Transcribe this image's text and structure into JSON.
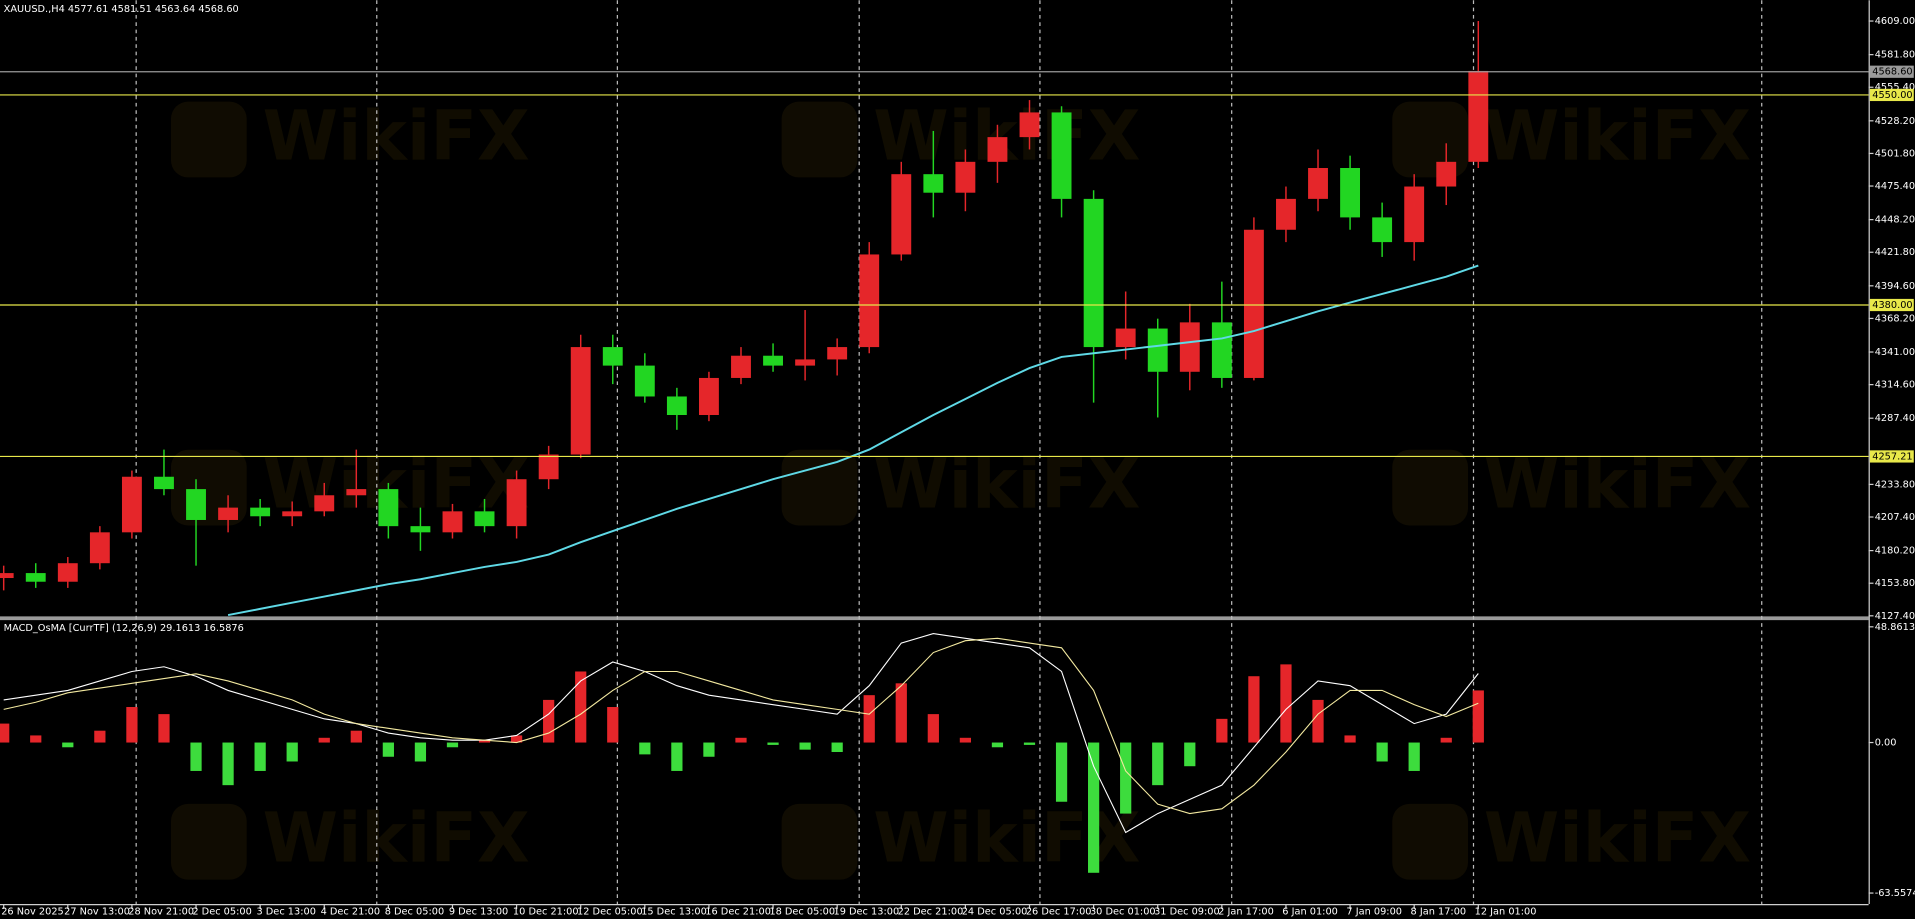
{
  "chart_data": [
    {
      "type": "candlestick",
      "title": "XAUUSD.,H4 4577.61 4581.51 4563.64 4568.60",
      "watermark": "WikiFX",
      "x": [
        0,
        4,
        8,
        12,
        16,
        20,
        24,
        28,
        32,
        36,
        40,
        44,
        48,
        52,
        56,
        60,
        64,
        68,
        72,
        76,
        80,
        84,
        88,
        92,
        96,
        100,
        104,
        108,
        112,
        116,
        120,
        124,
        128,
        132,
        136,
        140,
        144,
        148,
        152,
        156,
        160,
        164,
        168,
        172,
        176,
        180,
        184
      ],
      "open": [
        4158,
        4162,
        4155,
        4170,
        4195,
        4240,
        4230,
        4205,
        4215,
        4208,
        4212,
        4225,
        4230,
        4200,
        4195,
        4212,
        4200,
        4238,
        4258,
        4345,
        4330,
        4305,
        4290,
        4320,
        4338,
        4330,
        4335,
        4345,
        4420,
        4485,
        4470,
        4495,
        4515,
        4535,
        4465,
        4345,
        4360,
        4325,
        4365,
        4320,
        4440,
        4465,
        4490,
        4450,
        4430,
        4475,
        4495
      ],
      "high": [
        4168,
        4170,
        4175,
        4200,
        4245,
        4262,
        4238,
        4225,
        4222,
        4220,
        4235,
        4262,
        4235,
        4215,
        4218,
        4222,
        4245,
        4265,
        4355,
        4355,
        4340,
        4312,
        4325,
        4345,
        4348,
        4375,
        4352,
        4430,
        4495,
        4520,
        4505,
        4525,
        4545,
        4540,
        4472,
        4390,
        4368,
        4380,
        4398,
        4450,
        4475,
        4505,
        4500,
        4462,
        4485,
        4510,
        4609
      ],
      "low": [
        4148,
        4150,
        4150,
        4165,
        4190,
        4225,
        4168,
        4195,
        4200,
        4200,
        4208,
        4215,
        4190,
        4180,
        4190,
        4195,
        4190,
        4230,
        4255,
        4315,
        4300,
        4278,
        4285,
        4315,
        4325,
        4318,
        4322,
        4340,
        4415,
        4450,
        4455,
        4478,
        4505,
        4450,
        4300,
        4335,
        4288,
        4310,
        4312,
        4318,
        4430,
        4455,
        4440,
        4418,
        4415,
        4460,
        4490
      ],
      "close": [
        4162,
        4155,
        4170,
        4195,
        4240,
        4230,
        4205,
        4215,
        4208,
        4212,
        4225,
        4230,
        4200,
        4195,
        4212,
        4200,
        4238,
        4258,
        4345,
        4330,
        4305,
        4290,
        4320,
        4338,
        4330,
        4335,
        4345,
        4420,
        4485,
        4470,
        4495,
        4515,
        4535,
        4465,
        4345,
        4360,
        4325,
        4365,
        4320,
        4440,
        4465,
        4490,
        4450,
        4430,
        4475,
        4495,
        4568.6
      ],
      "up_color": "#e5262a",
      "down_color": "#22d622",
      "ma": {
        "color": "#5fd9e6",
        "values": [
          null,
          null,
          null,
          null,
          null,
          null,
          null,
          4128,
          4133,
          4138,
          4143,
          4148,
          4153,
          4157,
          4162,
          4167,
          4171,
          4177,
          4187,
          4196,
          4205,
          4214,
          4222,
          4230,
          4238,
          4245,
          4252,
          4262,
          4276,
          4290,
          4303,
          4316,
          4328,
          4337,
          4340,
          4343,
          4346,
          4349,
          4352,
          4358,
          4366,
          4374,
          4381,
          4388,
          4395,
          4402,
          4411
        ]
      },
      "levels": [
        {
          "value": 4568.6,
          "label": "4568.60",
          "color": "#9a9a9a"
        },
        {
          "value": 4550,
          "label": "4550.00",
          "color": "#e8e84a"
        },
        {
          "value": 4380,
          "label": "4380.00",
          "color": "#e8e84a"
        },
        {
          "value": 4257.21,
          "label": "4257.21",
          "color": "#e8e84a"
        }
      ],
      "period_separators": [
        16.5,
        46.5,
        76.5,
        106.6,
        129.2,
        153.1,
        183.3,
        219.3
      ],
      "xlim": [
        -0.46,
        232.7
      ],
      "ylim": [
        4126.4,
        4625.8
      ],
      "yticks": [
        {
          "value": 4609,
          "label": "4609.00"
        },
        {
          "value": 4581.8,
          "label": "4581.80"
        },
        {
          "value": 4555.4,
          "label": "4555.40"
        },
        {
          "value": 4528.2,
          "label": "4528.20"
        },
        {
          "value": 4501.8,
          "label": "4501.80"
        },
        {
          "value": 4475.4,
          "label": "4475.40"
        },
        {
          "value": 4448.2,
          "label": "4448.20"
        },
        {
          "value": 4421.8,
          "label": "4421.80"
        },
        {
          "value": 4394.6,
          "label": "4394.60"
        },
        {
          "value": 4368.2,
          "label": "4368.20"
        },
        {
          "value": 4341,
          "label": "4341.00"
        },
        {
          "value": 4314.6,
          "label": "4314.60"
        },
        {
          "value": 4287.4,
          "label": "4287.40"
        },
        {
          "value": 4233.8,
          "label": "4233.80"
        },
        {
          "value": 4207.4,
          "label": "4207.40"
        },
        {
          "value": 4180.2,
          "label": "4180.20"
        },
        {
          "value": 4153.8,
          "label": "4153.80"
        },
        {
          "value": 4127.4,
          "label": "4127.40"
        }
      ]
    },
    {
      "type": "macd",
      "title": "MACD_OsMA [CurrTF] (12,26,9) 29.1613 16.5876",
      "x": [
        0,
        4,
        8,
        12,
        16,
        20,
        24,
        28,
        32,
        36,
        40,
        44,
        48,
        52,
        56,
        60,
        64,
        68,
        72,
        76,
        80,
        84,
        88,
        92,
        96,
        100,
        104,
        108,
        112,
        116,
        120,
        124,
        128,
        132,
        136,
        140,
        144,
        148,
        152,
        156,
        160,
        164,
        168,
        172,
        176,
        180,
        184
      ],
      "histogram": {
        "up_color": "#e5262a",
        "down_color": "#3ddc3d",
        "values": [
          8,
          3,
          -2,
          5,
          15,
          12,
          -12,
          -18,
          -12,
          -8,
          2,
          5,
          -6,
          -8,
          -2,
          1,
          3,
          18,
          30,
          15,
          -5,
          -12,
          -6,
          2,
          -1,
          -3,
          -4,
          20,
          25,
          12,
          2,
          -2,
          -1,
          -25,
          -55,
          -30,
          -18,
          -10,
          10,
          28,
          33,
          18,
          3,
          -8,
          -12,
          2,
          22
        ]
      },
      "lines": [
        {
          "color": "#ffffff",
          "values": [
            18,
            20,
            22,
            26,
            30,
            32,
            28,
            22,
            18,
            14,
            10,
            8,
            4,
            2,
            1,
            1,
            3,
            12,
            26,
            34,
            30,
            24,
            20,
            18,
            16,
            14,
            12,
            24,
            42,
            46,
            44,
            42,
            40,
            30,
            -10,
            -38,
            -30,
            -24,
            -18,
            -2,
            14,
            26,
            24,
            16,
            8,
            12,
            29.16
          ]
        },
        {
          "color": "#f3e9a0",
          "values": [
            14,
            17,
            21,
            23,
            25,
            27,
            29,
            26,
            22,
            18,
            12,
            8,
            6,
            4,
            2,
            1,
            0,
            4,
            12,
            22,
            30,
            30,
            26,
            22,
            18,
            16,
            14,
            12,
            24,
            38,
            43,
            44,
            42,
            40,
            22,
            -12,
            -26,
            -30,
            -28,
            -18,
            -4,
            12,
            22,
            22,
            16,
            11,
            16.59
          ]
        }
      ],
      "xlim": [
        -0.46,
        232.7
      ],
      "ylim": [
        -68.2,
        51.44
      ],
      "yticks": [
        48.8613,
        {
          "value": 0,
          "label": "0.00"
        },
        -63.5574
      ],
      "xticks": [
        {
          "value": 0,
          "label": "26 Nov 2025"
        },
        {
          "value": 8,
          "label": "27 Nov 13:00"
        },
        {
          "value": 16,
          "label": "28 Nov 21:00"
        },
        {
          "value": 24,
          "label": "2 Dec 05:00"
        },
        {
          "value": 32,
          "label": "3 Dec 13:00"
        },
        {
          "value": 40,
          "label": "4 Dec 21:00"
        },
        {
          "value": 48,
          "label": "8 Dec 05:00"
        },
        {
          "value": 56,
          "label": "9 Dec 13:00"
        },
        {
          "value": 64,
          "label": "10 Dec 21:00"
        },
        {
          "value": 72,
          "label": "12 Dec 05:00"
        },
        {
          "value": 80,
          "label": "15 Dec 13:00"
        },
        {
          "value": 88,
          "label": "16 Dec 21:00"
        },
        {
          "value": 96,
          "label": "18 Dec 05:00"
        },
        {
          "value": 104,
          "label": "19 Dec 13:00"
        },
        {
          "value": 112,
          "label": "22 Dec 21:00"
        },
        {
          "value": 120,
          "label": "24 Dec 05:00"
        },
        {
          "value": 128,
          "label": "26 Dec 17:00"
        },
        {
          "value": 136,
          "label": "30 Dec 01:00"
        },
        {
          "value": 144,
          "label": "31 Dec 09:00"
        },
        {
          "value": 152,
          "label": "2 Jan 17:00"
        },
        {
          "value": 160,
          "label": "6 Jan 01:00"
        },
        {
          "value": 168,
          "label": "7 Jan 09:00"
        },
        {
          "value": 176,
          "label": "8 Jan 17:00"
        },
        {
          "value": 184,
          "label": "12 Jan 01:00"
        }
      ]
    }
  ]
}
